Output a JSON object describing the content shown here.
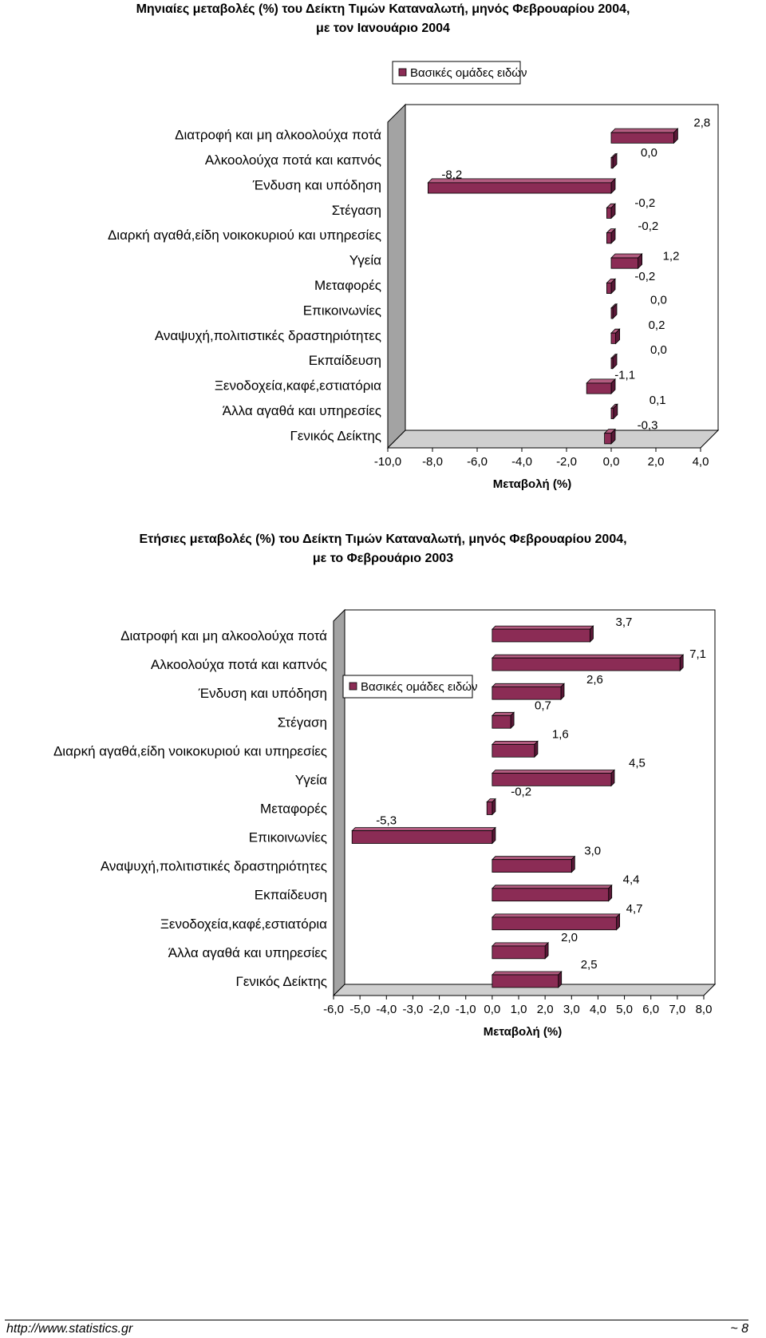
{
  "charts": [
    {
      "title_line1": "Μηνιαίες μεταβολές (%) του Δείκτη Τιμών Καταναλωτή, μηνός Φεβρουαρίου 2004,",
      "title_line2": "με τον Ιανουάριο  2004",
      "legend": "Βασικές ομάδες ειδών",
      "xlabel": "Μεταβολή (%)"
    },
    {
      "title_line1": "Ετήσιες μεταβολές (%) του  Δείκτη Τιμών Καταναλωτή, μηνός Φεβρουαρίου 2004,",
      "title_line2": "με το Φεβρουάριο 2003",
      "legend": "Βασικές ομάδες ειδών",
      "xlabel": "Μεταβολή (%)"
    }
  ],
  "chart_data": [
    {
      "type": "bar",
      "orientation": "horizontal",
      "title": "Μηνιαίες μεταβολές (%) του Δείκτη Τιμών Καταναλωτή, μηνός Φεβρουαρίου 2004, με τον Ιανουάριο  2004",
      "categories": [
        "Διατροφή και μη αλκοολούχα ποτά",
        "Αλκοολούχα ποτά και καπνός",
        "Ένδυση και υπόδηση",
        "Στέγαση",
        "Διαρκή αγαθά,είδη νοικοκυριού και υπηρεσίες",
        "Υγεία",
        "Μεταφορές",
        "Επικοινωνίες",
        "Αναψυχή,πολιτιστικές δραστηριότητες",
        "Εκπαίδευση",
        "Ξενοδοχεία,καφέ,εστιατόρια",
        "Άλλα αγαθά και υπηρεσίες",
        "Γενικός Δείκτης"
      ],
      "series": [
        {
          "name": "Βασικές ομάδες ειδών",
          "values": [
            2.8,
            0.0,
            -8.2,
            -0.2,
            -0.2,
            1.2,
            -0.2,
            0.0,
            0.2,
            0.0,
            -1.1,
            0.1,
            -0.3
          ],
          "labels": [
            "2,8",
            "0,0",
            "-8,2",
            "-0,2",
            "-0,2",
            "1,2",
            "-0,2",
            "0,0",
            "0,2",
            "0,0",
            "-1,1",
            "0,1",
            "-0,3"
          ]
        }
      ],
      "xlabel": "Μεταβολή (%)",
      "ylabel": "",
      "xlim": [
        -10,
        4
      ],
      "xticks": [
        "-10,0",
        "-8,0",
        "-6,0",
        "-4,0",
        "-2,0",
        "0,0",
        "2,0",
        "4,0"
      ],
      "legend_position": "top-center",
      "grid": false,
      "bar_color": "#8b2c55",
      "bar_side_color": "#5a1837",
      "bar_top_color": "#b35c80",
      "wall_color": "#a3a3a3",
      "floor_color": "#cfcfcf"
    },
    {
      "type": "bar",
      "orientation": "horizontal",
      "title": "Ετήσιες μεταβολές (%) του  Δείκτη Τιμών Καταναλωτή, μηνός Φεβρουαρίου 2004, με το Φεβρουάριο 2003",
      "categories": [
        "Διατροφή και μη αλκοολούχα ποτά",
        "Αλκοολούχα ποτά και καπνός",
        "Ένδυση και υπόδηση",
        "Στέγαση",
        "Διαρκή αγαθά,είδη νοικοκυριού και υπηρεσίες",
        "Υγεία",
        "Μεταφορές",
        "Επικοινωνίες",
        "Αναψυχή,πολιτιστικές δραστηριότητες",
        "Εκπαίδευση",
        "Ξενοδοχεία,καφέ,εστιατόρια",
        "Άλλα αγαθά και υπηρεσίες",
        "Γενικός Δείκτης"
      ],
      "series": [
        {
          "name": "Βασικές ομάδες ειδών",
          "values": [
            3.7,
            7.1,
            2.6,
            0.7,
            1.6,
            4.5,
            -0.2,
            -5.3,
            3.0,
            4.4,
            4.7,
            2.0,
            2.5
          ],
          "labels": [
            "3,7",
            "7,1",
            "2,6",
            "0,7",
            "1,6",
            "4,5",
            "-0,2",
            "-5,3",
            "3,0",
            "4,4",
            "4,7",
            "2,0",
            "2,5"
          ]
        }
      ],
      "xlabel": "Μεταβολή (%)",
      "ylabel": "",
      "xlim": [
        -6,
        8
      ],
      "xticks": [
        "-6,0",
        "-5,0",
        "-4,0",
        "-3,0",
        "-2,0",
        "-1,0",
        "0,0",
        "1,0",
        "2,0",
        "3,0",
        "4,0",
        "5,0",
        "6,0",
        "7,0",
        "8,0"
      ],
      "legend_position": "top-center",
      "grid": false,
      "bar_color": "#8b2c55",
      "bar_side_color": "#5a1837",
      "bar_top_color": "#b35c80",
      "wall_color": "#a3a3a3",
      "floor_color": "#cfcfcf"
    }
  ],
  "footer": {
    "url": "http://www.statistics.gr",
    "page": "~ 8"
  }
}
